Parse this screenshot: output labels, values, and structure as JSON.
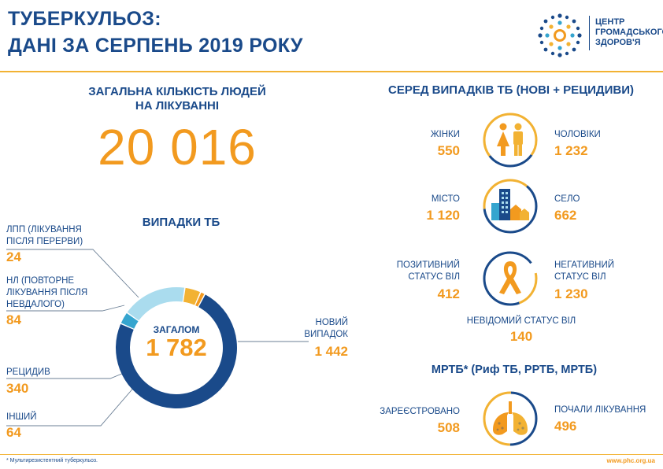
{
  "header": {
    "title_line1": "ТУБЕРКУЛЬОЗ:",
    "title_line2": "ДАНІ ЗА СЕРПЕНЬ 2019 РОКУ",
    "logo": [
      "ЦЕНТР",
      "ГРОМАДСЬКОГО",
      "ЗДОРОВ'Я"
    ]
  },
  "treatment": {
    "heading_line1": "ЗАГАЛЬНА КІЛЬКІСТЬ ЛЮДЕЙ",
    "heading_line2": "НА ЛІКУВАННІ",
    "total": "20 016"
  },
  "cases": {
    "heading": "ВИПАДКИ ТБ",
    "center_label": "ЗАГАЛОМ",
    "center_value": "1 782",
    "lpp_label": [
      "ЛПП (ЛІКУВАННЯ",
      "ПІСЛЯ ПЕРЕРВИ)"
    ],
    "lpp_value": "24",
    "nl_label": [
      "НЛ (ПОВТОРНЕ",
      "ЛІКУВАННЯ ПІСЛЯ",
      "НЕВДАЛОГО)"
    ],
    "nl_value": "84",
    "relapse_label": "РЕЦИДИВ",
    "relapse_value": "340",
    "other_label": "ІНШИЙ",
    "other_value": "64",
    "new_label": [
      "НОВИЙ",
      "ВИПАДОК"
    ],
    "new_value": "1 442"
  },
  "chart_data": {
    "type": "pie",
    "categories": [
      "НОВИЙ ВИПАДОК",
      "ІНШИЙ",
      "РЕЦИДИВ",
      "НЛ (ПОВТОРНЕ ЛІКУВАННЯ ПІСЛЯ НЕВДАЛОГО)",
      "ЛПП (ЛІКУВАННЯ ПІСЛЯ ПЕРЕРВИ)"
    ],
    "values": [
      1442,
      64,
      340,
      84,
      24
    ],
    "colors": [
      "#1a4a8a",
      "#35a5cf",
      "#aadcee",
      "#f2b233",
      "#f29a1f"
    ],
    "total": 1782,
    "title": "ВИПАДКИ ТБ"
  },
  "among": {
    "heading": "СЕРЕД ВИПАДКІВ ТБ (НОВІ + РЕЦИДИВИ)",
    "women_label": "ЖІНКИ",
    "women_value": "550",
    "men_label": "ЧОЛОВІКИ",
    "men_value": "1 232",
    "city_label": "МІСТО",
    "city_value": "1 120",
    "village_label": "СЕЛО",
    "village_value": "662",
    "pos_label": [
      "ПОЗИТИВНИЙ",
      "СТАТУС ВІЛ"
    ],
    "pos_value": "412",
    "neg_label": [
      "НЕГАТИВНИЙ",
      "СТАТУС  ВІЛ"
    ],
    "neg_value": "1 230",
    "unknown_label": "НЕВІДОМИЙ СТАТУС ВІЛ",
    "unknown_value": "140"
  },
  "mdr": {
    "heading": "МРТБ* (Риф ТБ, РРТБ, МРТБ)",
    "registered_label": "ЗАРЕЄСТРОВАНО",
    "registered_value": "508",
    "started_label": "ПОЧАЛИ ЛІКУВАННЯ",
    "started_value": "496"
  },
  "footer": {
    "footnote": "* Мультирезистентний туберкульоз.",
    "site": "www.phc.org.ua"
  },
  "colors": {
    "navy": "#1a4a8a",
    "orange": "#f29a1f",
    "yellow": "#f2b233",
    "light_blue": "#aadcee",
    "mid_blue": "#35a5cf"
  },
  "icons": [
    "logo-dots-icon",
    "people-icon",
    "city-icon",
    "ribbon-icon",
    "lungs-icon"
  ]
}
